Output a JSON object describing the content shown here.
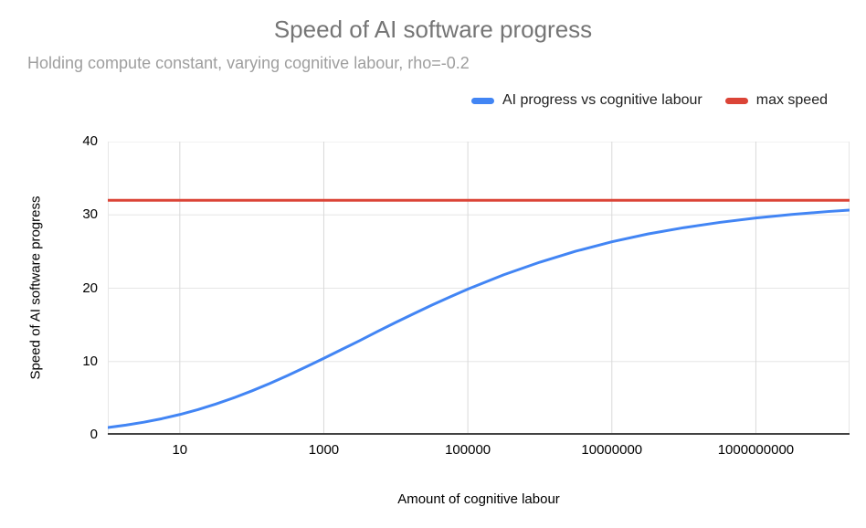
{
  "chart_data": {
    "type": "line",
    "title": "Speed of AI software progress",
    "subtitle": "Holding compute constant, varying cognitive labour, rho=-0.2",
    "xlabel": "Amount of cognitive labour",
    "ylabel": "Speed of AI software progress",
    "x_scale": "log",
    "xlim": [
      1,
      20000000000
    ],
    "ylim": [
      0,
      40
    ],
    "y_ticks": [
      0,
      10,
      20,
      30,
      40
    ],
    "x_ticks": [
      {
        "value": 10,
        "label": "10"
      },
      {
        "value": 1000,
        "label": "1000"
      },
      {
        "value": 100000,
        "label": "100000"
      },
      {
        "value": 10000000,
        "label": "10000000"
      },
      {
        "value": 1000000000,
        "label": "1000000000"
      }
    ],
    "grid": true,
    "legend_position": "top-right",
    "series": [
      {
        "name": "AI progress vs cognitive labour",
        "color": "#4285f4",
        "type": "curve",
        "points": [
          [
            1,
            1.0
          ],
          [
            1.78,
            1.32
          ],
          [
            3.16,
            1.72
          ],
          [
            5.62,
            2.2
          ],
          [
            10,
            2.77
          ],
          [
            17.8,
            3.44
          ],
          [
            31.6,
            4.2
          ],
          [
            56.2,
            5.05
          ],
          [
            100,
            5.99
          ],
          [
            178,
            7.01
          ],
          [
            316,
            8.1
          ],
          [
            562,
            9.25
          ],
          [
            1000,
            10.44
          ],
          [
            1778,
            11.65
          ],
          [
            3162,
            12.86
          ],
          [
            5623,
            14.12
          ],
          [
            10000,
            15.34
          ],
          [
            17783,
            16.53
          ],
          [
            31623,
            17.69
          ],
          [
            56234,
            18.8
          ],
          [
            100000,
            19.87
          ],
          [
            316228,
            21.84
          ],
          [
            1000000,
            23.55
          ],
          [
            3162278,
            25.05
          ],
          [
            10000000,
            26.33
          ],
          [
            31622777,
            27.4
          ],
          [
            100000000,
            28.26
          ],
          [
            316227766,
            28.98
          ],
          [
            1000000000,
            29.58
          ],
          [
            3162277660,
            30.06
          ],
          [
            10000000000,
            30.46
          ],
          [
            20000000000,
            30.65
          ]
        ]
      },
      {
        "name": "max speed",
        "color": "#db4437",
        "type": "hline",
        "y": 32
      }
    ],
    "colors": {
      "title": "#757575",
      "subtitle": "#9e9e9e",
      "axis_line": "#424242",
      "grid_line_horizontal": "#e6e6e6",
      "grid_line_vertical": "#d9d9d9",
      "plot_border": "#e6e6e6",
      "tick_text": "#000000"
    }
  }
}
